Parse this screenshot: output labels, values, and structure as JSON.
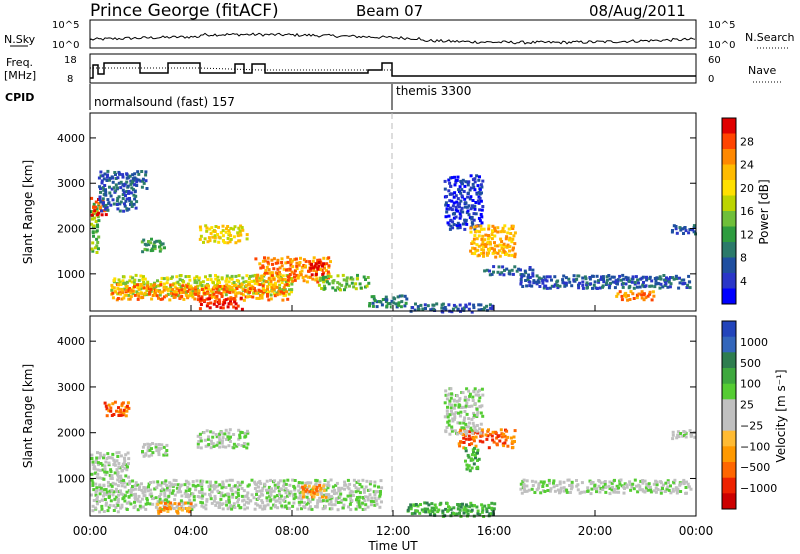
{
  "header": {
    "station": "Prince George (fitACF)",
    "beam": "Beam 07",
    "date": "08/Aug/2011"
  },
  "strips": {
    "nsky_label": "N.Sky",
    "nsky_ticks": [
      "10^5",
      "10^0"
    ],
    "nsearch_label": "N.Search",
    "nsearch_ticks": [
      "10^5",
      "10^0"
    ],
    "freq_label": [
      "Freq.",
      "[MHz]"
    ],
    "freq_ticks": [
      "18",
      "8"
    ],
    "nave_label": "Nave",
    "nave_ticks": [
      "60",
      "0"
    ],
    "cpid_label": "CPID",
    "cpid_segments": [
      {
        "label": "normalsound (fast) 157"
      },
      {
        "label": "themis 3300"
      }
    ]
  },
  "chart_data": [
    {
      "type": "heatmap",
      "name": "power",
      "xlabel": "Time UT",
      "ylabel": "Slant Range [km]",
      "xlim": [
        0,
        24
      ],
      "ylim": [
        180,
        4550
      ],
      "x_ticks": [
        "00:00",
        "04:00",
        "08:00",
        "12:00",
        "16:00",
        "20:00",
        "00:00"
      ],
      "y_ticks": [
        1000,
        2000,
        3000,
        4000
      ],
      "colorbar": {
        "label": "Power [dB]",
        "ticks": [
          "28",
          "24",
          "20",
          "16",
          "12",
          "8",
          "4"
        ],
        "colors": [
          "#e00000",
          "#ff4400",
          "#ff8800",
          "#ffbb00",
          "#ffe000",
          "#bcd400",
          "#6fbf3a",
          "#2e9c3f",
          "#2b7a6a",
          "#1f4fa0",
          "#2a36c8",
          "#0000ff"
        ]
      },
      "blobs": [
        {
          "t0": 0.0,
          "t1": 0.3,
          "r0": 1500,
          "r1": 2600,
          "c": 6
        },
        {
          "t0": 0.0,
          "t1": 0.6,
          "r0": 2300,
          "r1": 2700,
          "c": 1
        },
        {
          "t0": 0.3,
          "t1": 1.8,
          "r0": 2400,
          "r1": 3300,
          "c": 9
        },
        {
          "t0": 1.6,
          "t1": 2.2,
          "r0": 2900,
          "r1": 3300,
          "c": 9
        },
        {
          "t0": 0.8,
          "t1": 8.0,
          "r0": 550,
          "r1": 1000,
          "c": 5
        },
        {
          "t0": 0.8,
          "t1": 7.8,
          "r0": 450,
          "r1": 800,
          "c": 2
        },
        {
          "t0": 4.3,
          "t1": 6.0,
          "r0": 250,
          "r1": 500,
          "c": 0
        },
        {
          "t0": 2.0,
          "t1": 3.0,
          "r0": 1500,
          "r1": 1800,
          "c": 7
        },
        {
          "t0": 4.3,
          "t1": 6.2,
          "r0": 1700,
          "r1": 2100,
          "c": 4
        },
        {
          "t0": 6.5,
          "t1": 9.5,
          "r0": 850,
          "r1": 1400,
          "c": 2
        },
        {
          "t0": 8.6,
          "t1": 9.2,
          "r0": 1000,
          "r1": 1300,
          "c": 0
        },
        {
          "t0": 9.0,
          "t1": 11.0,
          "r0": 650,
          "r1": 1000,
          "c": 6
        },
        {
          "t0": 11.0,
          "t1": 12.5,
          "r0": 300,
          "r1": 550,
          "c": 8
        },
        {
          "t0": 12.6,
          "t1": 16.0,
          "r0": 180,
          "r1": 380,
          "c": 9
        },
        {
          "t0": 14.0,
          "t1": 15.5,
          "r0": 2000,
          "r1": 3200,
          "c": 10
        },
        {
          "t0": 15.0,
          "t1": 16.8,
          "r0": 1400,
          "r1": 2100,
          "c": 3
        },
        {
          "t0": 15.5,
          "t1": 17.5,
          "r0": 1000,
          "r1": 1200,
          "c": 9
        },
        {
          "t0": 17.0,
          "t1": 23.8,
          "r0": 700,
          "r1": 1000,
          "c": 9
        },
        {
          "t0": 20.8,
          "t1": 22.3,
          "r0": 450,
          "r1": 650,
          "c": 2
        },
        {
          "t0": 23.0,
          "t1": 24.0,
          "r0": 1900,
          "r1": 2100,
          "c": 9
        }
      ]
    },
    {
      "type": "heatmap",
      "name": "velocity",
      "xlabel": "Time UT",
      "ylabel": "Slant Range [km]",
      "xlim": [
        0,
        24
      ],
      "ylim": [
        180,
        4550
      ],
      "x_ticks": [
        "00:00",
        "04:00",
        "08:00",
        "12:00",
        "16:00",
        "20:00",
        "00:00"
      ],
      "y_ticks": [
        1000,
        2000,
        3000,
        4000
      ],
      "colorbar": {
        "label": "Velocity [m s⁻¹]",
        "ticks": [
          "1000",
          "500",
          "100",
          "25",
          "−25",
          "−100",
          "−500",
          "−1000"
        ],
        "colors": [
          "#2244bb",
          "#3366bb",
          "#2e7d4f",
          "#3ea83e",
          "#55cc33",
          "#c0c0c0",
          "#c0c0c0",
          "#ffbb33",
          "#ff9900",
          "#ff6600",
          "#ee2200",
          "#cc0000"
        ]
      },
      "blobs": [
        {
          "t0": 0.0,
          "t1": 1.5,
          "r0": 300,
          "r1": 1600,
          "c": 5
        },
        {
          "t0": 1.5,
          "t1": 11.5,
          "r0": 350,
          "r1": 1000,
          "c": 5
        },
        {
          "t0": 0.5,
          "t1": 1.5,
          "r0": 2400,
          "r1": 2700,
          "c": 9
        },
        {
          "t0": 2.0,
          "t1": 3.0,
          "r0": 1500,
          "r1": 1800,
          "c": 5
        },
        {
          "t0": 4.2,
          "t1": 6.2,
          "r0": 1700,
          "r1": 2100,
          "c": 5
        },
        {
          "t0": 2.6,
          "t1": 4.0,
          "r0": 250,
          "r1": 500,
          "c": 8
        },
        {
          "t0": 8.3,
          "t1": 9.3,
          "r0": 600,
          "r1": 900,
          "c": 8
        },
        {
          "t0": 12.5,
          "t1": 16.0,
          "r0": 200,
          "r1": 500,
          "c": 3
        },
        {
          "t0": 14.5,
          "t1": 16.8,
          "r0": 1700,
          "r1": 2100,
          "c": 9
        },
        {
          "t0": 14.8,
          "t1": 15.4,
          "r0": 1200,
          "r1": 1700,
          "c": 3
        },
        {
          "t0": 14.0,
          "t1": 15.5,
          "r0": 2000,
          "r1": 3000,
          "c": 5
        },
        {
          "t0": 17.0,
          "t1": 23.8,
          "r0": 700,
          "r1": 1000,
          "c": 5
        },
        {
          "t0": 23.0,
          "t1": 24.0,
          "r0": 1900,
          "r1": 2100,
          "c": 5
        }
      ]
    }
  ]
}
